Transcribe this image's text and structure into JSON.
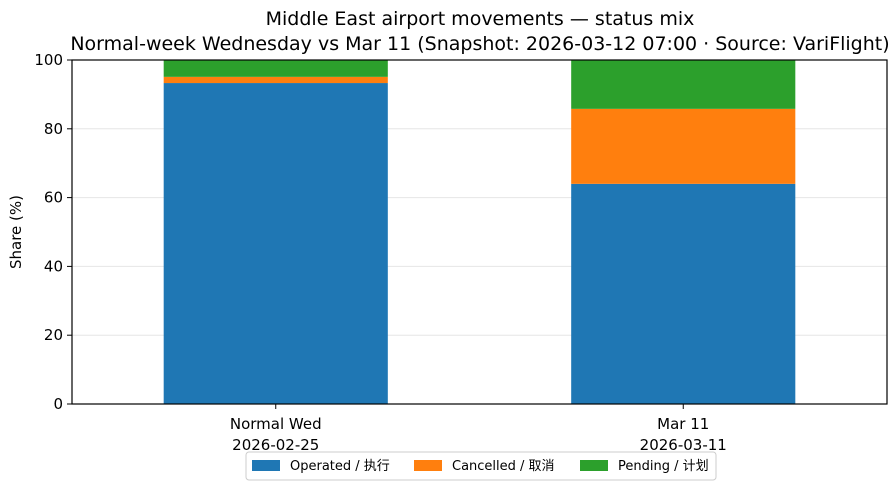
{
  "chart_data": {
    "type": "bar",
    "stacked": true,
    "title": "Middle East airport movements — status mix",
    "subtitle": "Normal-week Wednesday vs Mar 11 (Snapshot: 2026-03-12 07:00 · Source: VariFlight)",
    "xlabel": "",
    "ylabel": "Share (%)",
    "ylim": [
      0,
      100
    ],
    "yticks": [
      0,
      20,
      40,
      60,
      80,
      100
    ],
    "grid": true,
    "legend_position": "bottom",
    "categories": [
      {
        "line1": "Normal Wed",
        "line2": "2026-02-25"
      },
      {
        "line1": "Mar 11",
        "line2": "2026-03-11"
      }
    ],
    "series": [
      {
        "name": "Operated / 执行",
        "color": "#1f77b4",
        "values": [
          93.3,
          64.0
        ]
      },
      {
        "name": "Cancelled / 取消",
        "color": "#ff7f0e",
        "values": [
          1.8,
          21.8
        ]
      },
      {
        "name": "Pending / 计划",
        "color": "#2ca02c",
        "values": [
          4.9,
          14.2
        ]
      }
    ]
  }
}
